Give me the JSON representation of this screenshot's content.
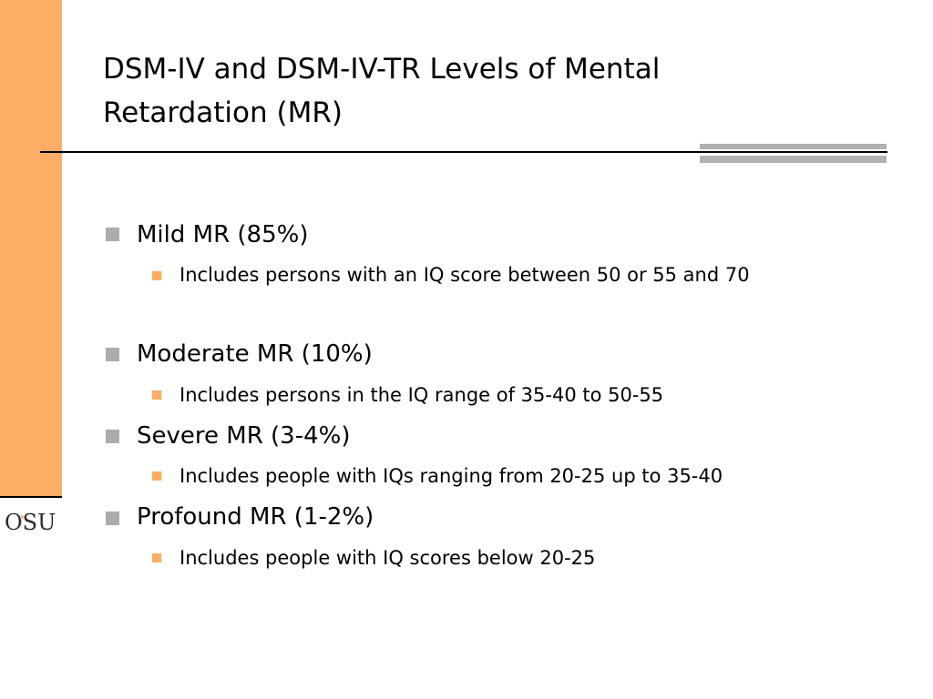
{
  "slide": {
    "title": "DSM-IV and DSM-IV-TR Levels of Mental Retardation (MR)",
    "bullets": [
      {
        "label": "Mild MR (85%)",
        "sub": "Includes persons with an IQ score between 50 or 55 and 70"
      },
      {
        "label": "Moderate MR (10%)",
        "sub": "Includes persons in the IQ range of 35-40 to 50-55"
      },
      {
        "label": "Severe MR (3-4%)",
        "sub": "Includes people with IQs ranging from 20-25 up to 35-40"
      },
      {
        "label": "Profound MR (1-2%)",
        "sub": "Includes people with IQ scores below 20-25"
      }
    ]
  },
  "logo": {
    "text": "OSU",
    "name": "osu-logo"
  },
  "colors": {
    "accent_orange": "#FDAD66",
    "bullet_grey": "#ACACAC",
    "rule_grey": "#B2B2B2",
    "text": "#000000"
  }
}
